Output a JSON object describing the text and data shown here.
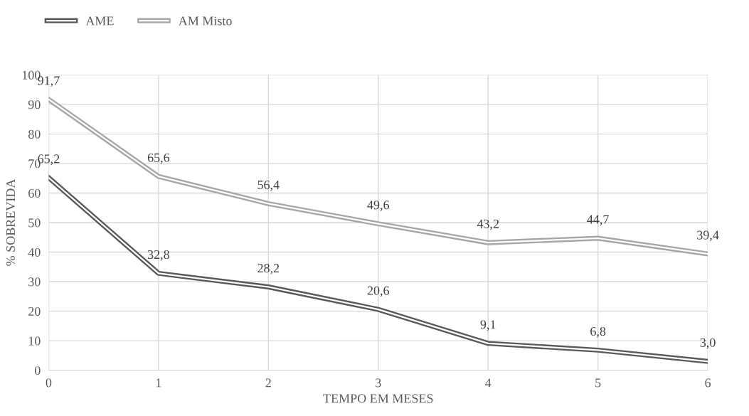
{
  "chart_data": {
    "type": "line",
    "xlabel": "TEMPO EM MESES",
    "ylabel": "% SOBREVIDA",
    "x": [
      0,
      1,
      2,
      3,
      4,
      5,
      6
    ],
    "series": [
      {
        "name": "AME",
        "color": "#595959",
        "values": [
          65.2,
          32.8,
          28.2,
          20.6,
          9.1,
          6.8,
          3.0
        ],
        "value_labels": [
          "65,2",
          "32,8",
          "28,2",
          "20,6",
          "9,1",
          "6,8",
          "3,0"
        ]
      },
      {
        "name": "AM Misto",
        "color": "#a6a6a6",
        "values": [
          91.7,
          65.6,
          56.4,
          49.6,
          43.2,
          44.7,
          39.4
        ],
        "value_labels": [
          "91,7",
          "65,6",
          "56,4",
          "49,6",
          "43,2",
          "44,7",
          "39,4"
        ]
      }
    ],
    "xlim": [
      0,
      6
    ],
    "xticks": [
      0,
      1,
      2,
      3,
      4,
      5,
      6
    ],
    "ylim": [
      0,
      100
    ],
    "yticks": [
      0,
      10,
      20,
      30,
      40,
      50,
      60,
      70,
      80,
      90,
      100
    ],
    "grid": true,
    "legend": "top left",
    "marker": "none",
    "line_style": "solid"
  }
}
